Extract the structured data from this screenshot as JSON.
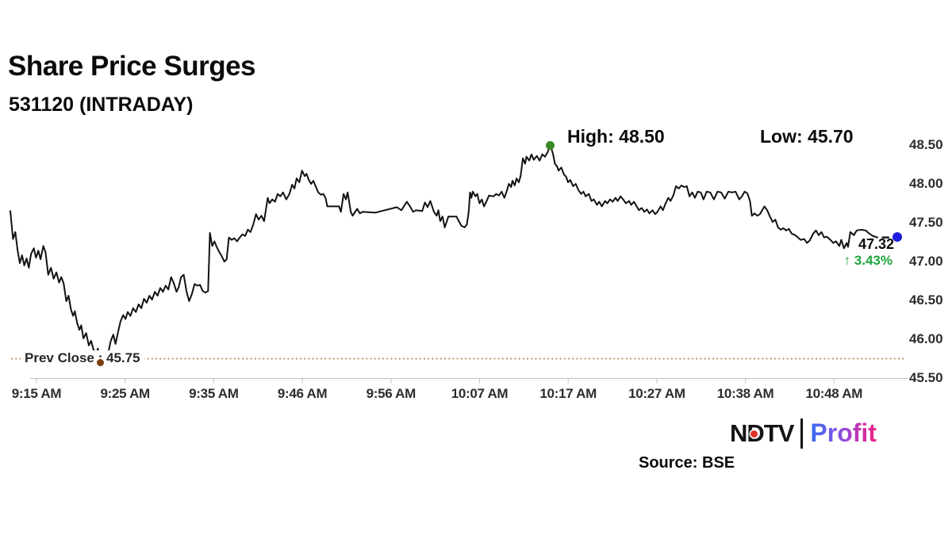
{
  "header": {
    "title": "Share Price Surges",
    "subtitle": "531120 (INTRADAY)"
  },
  "annotations": {
    "high_label": "High: 48.50",
    "low_label": "Low: 45.70",
    "prev_close_label": "Prev Close : 45.75",
    "last_price": "47.32",
    "change": "↑ 3.43%"
  },
  "footer": {
    "source": "Source: BSE",
    "logo_ndtv": "NDTV",
    "logo_profit": "Profit"
  },
  "colors": {
    "line": "#121212",
    "prev_close_line": "#b98a4d",
    "high_dot": "#3c8a27",
    "low_dot": "#7b3f10",
    "end_dot": "#1d1ddd",
    "change_text": "#1ea53b",
    "axis": "#c9c9c9",
    "logo_dot": "#e03227"
  },
  "chart_data": {
    "type": "line",
    "title": "531120 (INTRADAY)",
    "xlabel": "",
    "ylabel": "",
    "grid": false,
    "legend": false,
    "x_axis": {
      "labels": [
        "9:15 AM",
        "9:25 AM",
        "9:35 AM",
        "9:46 AM",
        "9:56 AM",
        "10:07 AM",
        "10:17 AM",
        "10:27 AM",
        "10:38 AM",
        "10:48 AM"
      ]
    },
    "y_axis": {
      "ticks": [
        "45.50",
        "46.00",
        "46.50",
        "47.00",
        "47.50",
        "48.00",
        "48.50"
      ],
      "min": 45.5,
      "max": 48.5
    },
    "prev_close": 45.75,
    "high": 48.5,
    "low": 45.7,
    "last": 47.32,
    "change_pct": 3.43,
    "series": {
      "name": "price",
      "x_unit": "minutes after 9:15 AM",
      "points": [
        [
          0,
          47.65
        ],
        [
          0.3,
          47.29
        ],
        [
          0.55,
          47.38
        ],
        [
          0.8,
          47.15
        ],
        [
          1.05,
          46.98
        ],
        [
          1.3,
          47.08
        ],
        [
          1.55,
          46.95
        ],
        [
          1.8,
          47.04
        ],
        [
          2.05,
          46.92
        ],
        [
          2.3,
          47.1
        ],
        [
          2.6,
          47.17
        ],
        [
          2.85,
          47.05
        ],
        [
          3.1,
          47.14
        ],
        [
          3.35,
          47.03
        ],
        [
          3.65,
          47.2
        ],
        [
          3.9,
          47.12
        ],
        [
          4.2,
          46.83
        ],
        [
          4.5,
          46.92
        ],
        [
          4.8,
          46.78
        ],
        [
          5.1,
          46.86
        ],
        [
          5.4,
          46.73
        ],
        [
          5.65,
          46.8
        ],
        [
          5.9,
          46.72
        ],
        [
          6.2,
          46.49
        ],
        [
          6.45,
          46.56
        ],
        [
          6.7,
          46.39
        ],
        [
          6.95,
          46.3
        ],
        [
          7.15,
          46.36
        ],
        [
          7.4,
          46.21
        ],
        [
          7.65,
          46.12
        ],
        [
          7.85,
          46.18
        ],
        [
          8.1,
          46.01
        ],
        [
          8.4,
          46.08
        ],
        [
          8.7,
          45.92
        ],
        [
          8.95,
          45.98
        ],
        [
          9.2,
          45.87
        ],
        [
          9.5,
          45.82
        ],
        [
          9.7,
          45.88
        ],
        [
          10,
          45.7
        ],
        [
          10.3,
          45.76
        ],
        [
          10.55,
          45.72
        ],
        [
          10.8,
          45.8
        ],
        [
          11.1,
          45.97
        ],
        [
          11.4,
          46.06
        ],
        [
          11.65,
          45.94
        ],
        [
          11.95,
          46.1
        ],
        [
          12.2,
          46.23
        ],
        [
          12.5,
          46.31
        ],
        [
          12.75,
          46.26
        ],
        [
          13,
          46.35
        ],
        [
          13.3,
          46.3
        ],
        [
          13.6,
          46.4
        ],
        [
          13.9,
          46.35
        ],
        [
          14.2,
          46.45
        ],
        [
          14.5,
          46.4
        ],
        [
          14.8,
          46.52
        ],
        [
          15.1,
          46.47
        ],
        [
          15.4,
          46.56
        ],
        [
          15.7,
          46.51
        ],
        [
          16,
          46.61
        ],
        [
          16.3,
          46.56
        ],
        [
          16.6,
          46.66
        ],
        [
          16.9,
          46.61
        ],
        [
          17.2,
          46.69
        ],
        [
          17.5,
          46.64
        ],
        [
          17.8,
          46.8
        ],
        [
          18.1,
          46.72
        ],
        [
          18.4,
          46.61
        ],
        [
          18.65,
          46.67
        ],
        [
          18.9,
          46.8
        ],
        [
          19.2,
          46.83
        ],
        [
          19.5,
          46.62
        ],
        [
          19.8,
          46.49
        ],
        [
          20.1,
          46.58
        ],
        [
          20.4,
          46.71
        ],
        [
          20.7,
          46.69
        ],
        [
          21,
          46.7
        ],
        [
          21.3,
          46.62
        ],
        [
          21.6,
          46.6
        ],
        [
          21.9,
          46.62
        ],
        [
          22.1,
          47.37
        ],
        [
          22.35,
          47.2
        ],
        [
          22.6,
          47.26
        ],
        [
          22.85,
          47.19
        ],
        [
          23.1,
          47.13
        ],
        [
          23.4,
          47.07
        ],
        [
          23.7,
          47
        ],
        [
          23.95,
          47.03
        ],
        [
          24.2,
          47.31
        ],
        [
          24.5,
          47.28
        ],
        [
          24.8,
          47.3
        ],
        [
          25.1,
          47.26
        ],
        [
          25.4,
          47.31
        ],
        [
          25.7,
          47.35
        ],
        [
          26,
          47.33
        ],
        [
          26.3,
          47.41
        ],
        [
          26.6,
          47.38
        ],
        [
          26.9,
          47.48
        ],
        [
          27.2,
          47.61
        ],
        [
          27.5,
          47.54
        ],
        [
          27.8,
          47.59
        ],
        [
          28.1,
          47.52
        ],
        [
          28.5,
          47.82
        ],
        [
          28.7,
          47.75
        ],
        [
          29,
          47.8
        ],
        [
          29.3,
          47.77
        ],
        [
          29.6,
          47.87
        ],
        [
          29.9,
          47.84
        ],
        [
          30.2,
          47.89
        ],
        [
          30.55,
          47.8
        ],
        [
          30.9,
          47.87
        ],
        [
          31.2,
          47.99
        ],
        [
          31.45,
          47.94
        ],
        [
          31.7,
          48.07
        ],
        [
          32,
          48.02
        ],
        [
          32.3,
          48.17
        ],
        [
          32.6,
          48.1
        ],
        [
          32.8,
          48.13
        ],
        [
          33.05,
          48.05
        ],
        [
          33.3,
          48
        ],
        [
          33.55,
          48.04
        ],
        [
          33.8,
          47.97
        ],
        [
          34.1,
          47.89
        ],
        [
          34.4,
          47.86
        ],
        [
          34.65,
          47.87
        ],
        [
          34.9,
          47.82
        ],
        [
          35.1,
          47.71
        ],
        [
          36.4,
          47.71
        ],
        [
          36.6,
          47.64
        ],
        [
          36.9,
          47.87
        ],
        [
          37.15,
          47.8
        ],
        [
          37.35,
          47.89
        ],
        [
          37.7,
          47.64
        ],
        [
          37.9,
          47.59
        ],
        [
          38.4,
          47.68
        ],
        [
          38.7,
          47.62
        ],
        [
          39,
          47.64
        ],
        [
          40.4,
          47.63
        ],
        [
          42.8,
          47.7
        ],
        [
          43.3,
          47.66
        ],
        [
          43.9,
          47.77
        ],
        [
          44.2,
          47.72
        ],
        [
          44.6,
          47.64
        ],
        [
          44.9,
          47.66
        ],
        [
          45.6,
          47.65
        ],
        [
          45.9,
          47.76
        ],
        [
          46.2,
          47.7
        ],
        [
          46.5,
          47.78
        ],
        [
          46.9,
          47.64
        ],
        [
          47.2,
          47.59
        ],
        [
          47.4,
          47.66
        ],
        [
          47.6,
          47.52
        ],
        [
          47.85,
          47.58
        ],
        [
          48.1,
          47.44
        ],
        [
          48.5,
          47.58
        ],
        [
          49.4,
          47.58
        ],
        [
          49.65,
          47.52
        ],
        [
          49.95,
          47.46
        ],
        [
          50.3,
          47.44
        ],
        [
          50.55,
          47.48
        ],
        [
          50.75,
          47.64
        ],
        [
          50.9,
          47.89
        ],
        [
          51.05,
          47.82
        ],
        [
          51.2,
          47.9
        ],
        [
          51.5,
          47.84
        ],
        [
          51.7,
          47.87
        ],
        [
          51.95,
          47.75
        ],
        [
          52.2,
          47.8
        ],
        [
          52.45,
          47.71
        ],
        [
          52.7,
          47.77
        ],
        [
          53,
          47.85
        ],
        [
          53.5,
          47.84
        ],
        [
          53.8,
          47.87
        ],
        [
          54.1,
          47.85
        ],
        [
          54.4,
          47.9
        ],
        [
          54.7,
          47.82
        ],
        [
          55,
          47.92
        ],
        [
          55.2,
          48
        ],
        [
          55.45,
          47.96
        ],
        [
          55.6,
          48.04
        ],
        [
          55.85,
          47.98
        ],
        [
          56.05,
          48.07
        ],
        [
          56.3,
          48.02
        ],
        [
          56.5,
          48.1
        ],
        [
          56.75,
          48.33
        ],
        [
          57,
          48.26
        ],
        [
          57.15,
          48.35
        ],
        [
          57.45,
          48.3
        ],
        [
          57.7,
          48.38
        ],
        [
          57.95,
          48.31
        ],
        [
          58.3,
          48.36
        ],
        [
          58.6,
          48.3
        ],
        [
          58.9,
          48.38
        ],
        [
          59.2,
          48.35
        ],
        [
          59.5,
          48.41
        ],
        [
          59.8,
          48.5
        ],
        [
          60.1,
          48.38
        ],
        [
          60.3,
          48.26
        ],
        [
          60.55,
          48.22
        ],
        [
          60.7,
          48.17
        ],
        [
          61,
          48.21
        ],
        [
          61.3,
          48.12
        ],
        [
          61.55,
          48.09
        ],
        [
          61.75,
          48.02
        ],
        [
          62,
          48.05
        ],
        [
          62.3,
          47.97
        ],
        [
          62.6,
          48
        ],
        [
          62.9,
          47.92
        ],
        [
          63.2,
          47.87
        ],
        [
          63.45,
          47.9
        ],
        [
          63.7,
          47.84
        ],
        [
          64.05,
          47.87
        ],
        [
          64.35,
          47.78
        ],
        [
          64.6,
          47.8
        ],
        [
          64.95,
          47.73
        ],
        [
          65.2,
          47.77
        ],
        [
          65.5,
          47.71
        ],
        [
          65.85,
          47.78
        ],
        [
          66.1,
          47.75
        ],
        [
          66.4,
          47.8
        ],
        [
          66.7,
          47.77
        ],
        [
          67,
          47.82
        ],
        [
          67.25,
          47.78
        ],
        [
          67.55,
          47.84
        ],
        [
          67.85,
          47.8
        ],
        [
          68.15,
          47.75
        ],
        [
          68.5,
          47.78
        ],
        [
          68.75,
          47.73
        ],
        [
          69.05,
          47.77
        ],
        [
          69.35,
          47.71
        ],
        [
          69.6,
          47.66
        ],
        [
          69.9,
          47.69
        ],
        [
          70.2,
          47.64
        ],
        [
          70.5,
          47.67
        ],
        [
          70.75,
          47.62
        ],
        [
          71.1,
          47.66
        ],
        [
          71.4,
          47.61
        ],
        [
          71.65,
          47.64
        ],
        [
          72,
          47.71
        ],
        [
          72.25,
          47.66
        ],
        [
          72.55,
          47.75
        ],
        [
          72.85,
          47.82
        ],
        [
          73.1,
          47.78
        ],
        [
          73.4,
          47.85
        ],
        [
          73.7,
          47.97
        ],
        [
          74,
          47.94
        ],
        [
          74.3,
          47.98
        ],
        [
          74.6,
          47.96
        ],
        [
          74.9,
          47.97
        ],
        [
          75.2,
          47.84
        ],
        [
          75.5,
          47.89
        ],
        [
          75.8,
          47.82
        ],
        [
          76.1,
          47.9
        ],
        [
          76.45,
          47.89
        ],
        [
          76.75,
          47.8
        ],
        [
          77.1,
          47.9
        ],
        [
          77.5,
          47.89
        ],
        [
          77.9,
          47.8
        ],
        [
          78.3,
          47.9
        ],
        [
          78.7,
          47.89
        ],
        [
          79.1,
          47.81
        ],
        [
          79.5,
          47.9
        ],
        [
          79.9,
          47.89
        ],
        [
          80.3,
          47.9
        ],
        [
          80.7,
          47.8
        ],
        [
          81,
          47.84
        ],
        [
          81.3,
          47.9
        ],
        [
          81.6,
          47.88
        ],
        [
          81.9,
          47.78
        ],
        [
          82.1,
          47.59
        ],
        [
          82.4,
          47.62
        ],
        [
          82.7,
          47.59
        ],
        [
          83,
          47.61
        ],
        [
          83.5,
          47.71
        ],
        [
          83.8,
          47.66
        ],
        [
          84.1,
          47.58
        ],
        [
          84.4,
          47.51
        ],
        [
          84.7,
          47.54
        ],
        [
          85,
          47.44
        ],
        [
          85.3,
          47.41
        ],
        [
          85.6,
          47.43
        ],
        [
          85.9,
          47.4
        ],
        [
          86.2,
          47.42
        ],
        [
          86.5,
          47.36
        ],
        [
          86.9,
          47.34
        ],
        [
          87.2,
          47.31
        ],
        [
          87.5,
          47.28
        ],
        [
          87.9,
          47.29
        ],
        [
          88.2,
          47.24
        ],
        [
          88.5,
          47.27
        ],
        [
          88.9,
          47.36
        ],
        [
          89.2,
          47.4
        ],
        [
          89.5,
          47.34
        ],
        [
          89.8,
          47.38
        ],
        [
          90.1,
          47.31
        ],
        [
          90.4,
          47.32
        ],
        [
          90.8,
          47.28
        ],
        [
          91.1,
          47.24
        ],
        [
          91.4,
          47.26
        ],
        [
          91.8,
          47.2
        ],
        [
          92,
          47.28
        ],
        [
          92.3,
          47.17
        ],
        [
          92.6,
          47.24
        ],
        [
          92.75,
          47.19
        ],
        [
          93,
          47.38
        ],
        [
          93.4,
          47.34
        ],
        [
          93.7,
          47.4
        ],
        [
          94.2,
          47.41
        ],
        [
          94.7,
          47.4
        ],
        [
          95.1,
          47.36
        ],
        [
          95.5,
          47.33
        ],
        [
          96,
          47.31
        ]
      ]
    },
    "tail_dash": {
      "t1": 96.5,
      "t2": 97.3,
      "price": 47.31
    },
    "end_point": {
      "t": 98.2,
      "price": 47.32
    },
    "high_point": {
      "t": 59.8,
      "price": 48.5
    },
    "low_point": {
      "t": 10,
      "price": 45.7
    }
  }
}
